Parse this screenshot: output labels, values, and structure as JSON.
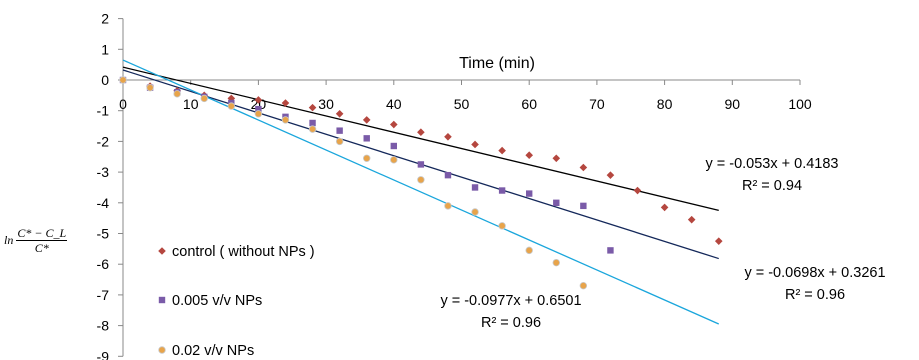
{
  "chart_data": {
    "type": "scatter",
    "xlabel": "Time (min)",
    "ylabel": "ln (C* − C_L) / C*",
    "ylabel_parts": {
      "prefix": "ln",
      "numerator": "C* − C_L",
      "denominator": "C*"
    },
    "xlim": [
      0,
      100
    ],
    "ylim": [
      -9,
      2
    ],
    "x_ticks": [
      0,
      10,
      20,
      30,
      40,
      50,
      60,
      70,
      80,
      90,
      100
    ],
    "y_ticks": [
      2,
      1,
      0,
      -1,
      -2,
      -3,
      -4,
      -5,
      -6,
      -7,
      -8,
      -9
    ],
    "grid": false,
    "legend_position": "bottom-left",
    "series": [
      {
        "name": "control ( without NPs )",
        "marker": "diamond",
        "color": "#b5473f",
        "x": [
          0,
          4,
          8,
          12,
          16,
          20,
          24,
          28,
          32,
          36,
          40,
          44,
          48,
          52,
          56,
          60,
          64,
          68,
          72,
          76,
          80,
          84,
          88
        ],
        "y": [
          0,
          -0.2,
          -0.35,
          -0.5,
          -0.6,
          -0.65,
          -0.75,
          -0.9,
          -1.1,
          -1.3,
          -1.45,
          -1.7,
          -1.85,
          -2.1,
          -2.3,
          -2.45,
          -2.55,
          -2.85,
          -3.1,
          -3.6,
          -4.15,
          -4.55,
          -5.25
        ],
        "fit": {
          "slope": -0.053,
          "intercept": 0.4183,
          "x_range": [
            0,
            88
          ],
          "line_color": "#000000",
          "equation": "y = -0.053x + 0.4183",
          "r2": "R² = 0.94"
        }
      },
      {
        "name": "0.005 v/v NPs",
        "marker": "square",
        "color": "#7a5ba8",
        "x": [
          0,
          4,
          8,
          12,
          16,
          20,
          24,
          28,
          32,
          36,
          40,
          44,
          48,
          52,
          56,
          60,
          64,
          68,
          72
        ],
        "y": [
          0,
          -0.25,
          -0.4,
          -0.55,
          -0.75,
          -0.95,
          -1.2,
          -1.4,
          -1.65,
          -1.9,
          -2.15,
          -2.75,
          -3.1,
          -3.5,
          -3.6,
          -3.7,
          -4.0,
          -4.1,
          -5.55
        ],
        "fit": {
          "slope": -0.0698,
          "intercept": 0.3261,
          "x_range": [
            0,
            88
          ],
          "line_color": "#14285a",
          "equation": "y = -0.0698x + 0.3261",
          "r2": "R² = 0.96"
        }
      },
      {
        "name": "0.02 v/v NPs",
        "marker": "circle",
        "color": "#e8a44a",
        "x": [
          0,
          4,
          8,
          12,
          16,
          20,
          24,
          28,
          32,
          36,
          40,
          44,
          48,
          52,
          56,
          60,
          64,
          68
        ],
        "y": [
          0,
          -0.25,
          -0.45,
          -0.6,
          -0.85,
          -1.1,
          -1.3,
          -1.6,
          -2.0,
          -2.55,
          -2.6,
          -3.25,
          -4.1,
          -4.3,
          -4.75,
          -5.55,
          -5.95,
          -6.7
        ],
        "fit": {
          "slope": -0.0977,
          "intercept": 0.6501,
          "x_range": [
            0,
            88
          ],
          "line_color": "#1aa6dc",
          "equation": "y = -0.0977x + 0.6501",
          "r2": "R² = 0.96"
        }
      }
    ]
  }
}
